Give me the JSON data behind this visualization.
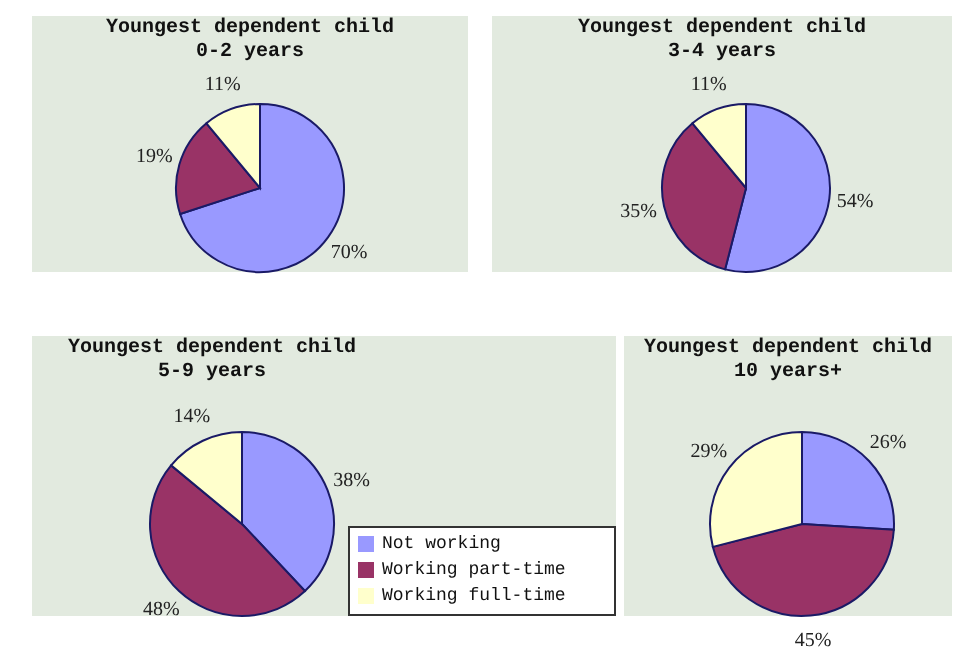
{
  "chart_data": [
    {
      "type": "pie",
      "title": "Youngest dependent child",
      "subtitle": "0-2 years",
      "values": [
        70,
        19,
        11
      ],
      "value_labels": [
        "70%",
        "19%",
        "11%"
      ],
      "colors": [
        "#9999ff",
        "#993366",
        "#ffffcc"
      ]
    },
    {
      "type": "pie",
      "title": "Youngest dependent child",
      "subtitle": "3-4 years",
      "values": [
        54,
        35,
        11
      ],
      "value_labels": [
        "54%",
        "35%",
        "11%"
      ],
      "colors": [
        "#9999ff",
        "#993366",
        "#ffffcc"
      ]
    },
    {
      "type": "pie",
      "title": "Youngest dependent child",
      "subtitle": "5-9 years",
      "categories": [
        "Not working",
        "Working part-time",
        "Working full-time"
      ],
      "values": [
        38,
        48,
        14
      ],
      "value_labels": [
        "38%",
        "48%",
        "14%"
      ],
      "colors": [
        "#9999ff",
        "#993366",
        "#ffffcc"
      ],
      "legend": "bottom right"
    },
    {
      "type": "pie",
      "title": "Youngest dependent child",
      "subtitle": "10 years+",
      "values": [
        26,
        45,
        29
      ],
      "value_labels": [
        "26%",
        "45%",
        "29%"
      ],
      "colors": [
        "#9999ff",
        "#993366",
        "#ffffcc"
      ]
    }
  ]
}
